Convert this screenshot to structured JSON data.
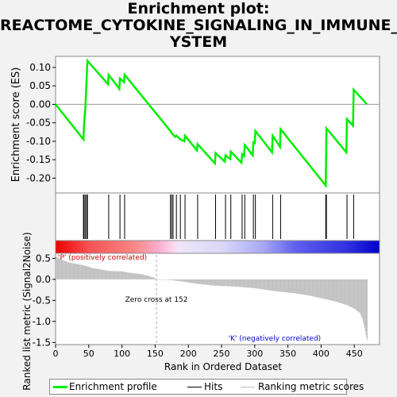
{
  "title": "Enrichment plot: REACTOME_CYTOKINE_SIGNALING_IN_IMMUNE_SYSTEM",
  "title_lines": [
    "Enrichment plot:",
    "REACTOME_CYTOKINE_SIGNALING_IN_IMMUNE_S",
    "YSTEM"
  ],
  "colors": {
    "enrichment_line": "#00ee00",
    "hits": "#000000",
    "ranking": "#c0c0c0",
    "positive_label": "#cc0000",
    "negative_label": "#0000cc"
  },
  "chart_data": {
    "type": "line",
    "panels": [
      "enrichment_profile",
      "hits",
      "ranked_list_metric"
    ],
    "x": {
      "label": "Rank in Ordered Dataset",
      "ticks": [
        0,
        50,
        100,
        150,
        200,
        250,
        300,
        350,
        400,
        450
      ],
      "range": [
        0,
        488
      ]
    },
    "enrichment": {
      "ylabel": "Enrichment score (ES)",
      "ylim": [
        -0.24,
        0.13
      ],
      "ticks": [
        0.1,
        0.05,
        0.0,
        -0.05,
        -0.1,
        -0.15,
        -0.2
      ],
      "tick_labels": [
        "0.10",
        "0.05",
        "0.00",
        "-0.05",
        "-0.10",
        "-0.15",
        "-0.20"
      ],
      "series_name": "Enrichment profile",
      "points": [
        [
          0,
          0.0
        ],
        [
          42,
          -0.095
        ],
        [
          43,
          -0.05
        ],
        [
          45,
          -0.005
        ],
        [
          48,
          0.118
        ],
        [
          79,
          0.055
        ],
        [
          80,
          0.08
        ],
        [
          96,
          0.042
        ],
        [
          97,
          0.07
        ],
        [
          103,
          0.06
        ],
        [
          104,
          0.08
        ],
        [
          173,
          -0.072
        ],
        [
          175,
          -0.078
        ],
        [
          177,
          -0.082
        ],
        [
          180,
          -0.088
        ],
        [
          182,
          -0.085
        ],
        [
          188,
          -0.095
        ],
        [
          194,
          -0.1
        ],
        [
          195,
          -0.085
        ],
        [
          213,
          -0.125
        ],
        [
          214,
          -0.108
        ],
        [
          240,
          -0.16
        ],
        [
          241,
          -0.132
        ],
        [
          255,
          -0.155
        ],
        [
          256,
          -0.138
        ],
        [
          263,
          -0.148
        ],
        [
          264,
          -0.128
        ],
        [
          280,
          -0.158
        ],
        [
          281,
          -0.135
        ],
        [
          284,
          -0.14
        ],
        [
          285,
          -0.11
        ],
        [
          297,
          -0.138
        ],
        [
          298,
          -0.1
        ],
        [
          300,
          -0.108
        ],
        [
          301,
          -0.072
        ],
        [
          326,
          -0.13
        ],
        [
          327,
          -0.085
        ],
        [
          338,
          -0.115
        ],
        [
          339,
          -0.067
        ],
        [
          407,
          -0.22
        ],
        [
          408,
          -0.065
        ],
        [
          438,
          -0.13
        ],
        [
          439,
          -0.04
        ],
        [
          448,
          -0.058
        ],
        [
          449,
          0.04
        ],
        [
          469,
          0.0
        ]
      ]
    },
    "hits": {
      "series_name": "Hits",
      "ranks": [
        42,
        43,
        45,
        47,
        48,
        80,
        97,
        104,
        173,
        175,
        177,
        182,
        188,
        195,
        214,
        241,
        256,
        264,
        281,
        285,
        298,
        301,
        327,
        339,
        407,
        408,
        439,
        449
      ]
    },
    "ranking": {
      "ylabel": "Ranked list metric (Signal2Noise)",
      "ylim": [
        -1.55,
        0.62
      ],
      "ticks": [
        0.5,
        0.0,
        -0.5,
        -1.0,
        -1.5
      ],
      "tick_labels": [
        "0.5",
        "0.0",
        "-0.5",
        "-1.0",
        "-1.5"
      ],
      "series_name": "Ranking metric scores",
      "profile": [
        [
          0,
          0.55
        ],
        [
          5,
          0.5
        ],
        [
          10,
          0.46
        ],
        [
          20,
          0.4
        ],
        [
          40,
          0.34
        ],
        [
          50,
          0.3
        ],
        [
          55,
          0.27
        ],
        [
          70,
          0.23
        ],
        [
          80,
          0.2
        ],
        [
          100,
          0.19
        ],
        [
          110,
          0.16
        ],
        [
          130,
          0.12
        ],
        [
          140,
          0.08
        ],
        [
          150,
          0.03
        ],
        [
          152,
          0.0
        ],
        [
          170,
          -0.01
        ],
        [
          190,
          -0.05
        ],
        [
          210,
          -0.1
        ],
        [
          240,
          -0.15
        ],
        [
          270,
          -0.17
        ],
        [
          300,
          -0.21
        ],
        [
          330,
          -0.28
        ],
        [
          360,
          -0.33
        ],
        [
          380,
          -0.38
        ],
        [
          400,
          -0.45
        ],
        [
          420,
          -0.52
        ],
        [
          440,
          -0.62
        ],
        [
          450,
          -0.7
        ],
        [
          458,
          -0.8
        ],
        [
          462,
          -0.95
        ],
        [
          465,
          -1.15
        ],
        [
          468,
          -1.4
        ],
        [
          469,
          -1.45
        ]
      ],
      "zero_cross_label": "Zero cross at 152",
      "zero_cross": 152,
      "positive_label": "'P' (positively correlated)",
      "negative_label": "'K' (negatively correlated)"
    }
  },
  "legend": {
    "enrichment": "Enrichment profile",
    "hits": "Hits",
    "ranking": "Ranking metric scores"
  }
}
